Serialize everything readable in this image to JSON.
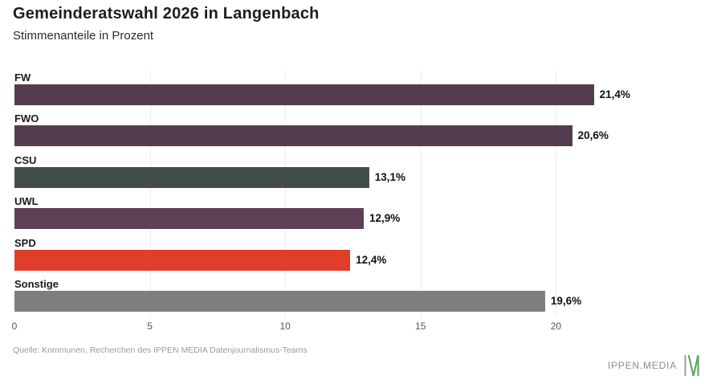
{
  "header": {
    "title": "Gemeinderatswahl 2026 in Langenbach",
    "subtitle": "Stimmenanteile in Prozent"
  },
  "chart_data": {
    "type": "bar",
    "orientation": "horizontal",
    "title": "Gemeinderatswahl 2026 in Langenbach",
    "subtitle": "Stimmenanteile in Prozent",
    "xlabel": "",
    "ylabel": "",
    "categories": [
      "FW",
      "FWO",
      "CSU",
      "UWL",
      "SPD",
      "Sonstige"
    ],
    "values": [
      21.4,
      20.6,
      13.1,
      12.9,
      12.4,
      19.6
    ],
    "value_labels": [
      "21,4%",
      "20,6%",
      "13,1%",
      "12,9%",
      "12,4%",
      "19,6%"
    ],
    "bar_colors": [
      "#543c4f",
      "#543c4f",
      "#434d49",
      "#5e4156",
      "#e03e2a",
      "#7f7e7f"
    ],
    "xlim": [
      0,
      25
    ],
    "ticks": [
      0,
      5,
      10,
      15,
      20
    ],
    "grid": "vertical-light",
    "legend": "none",
    "grid_color": "#ececec"
  },
  "footer": {
    "source": "Quelle: Kommunen, Recherchen des IPPEN MEDIA Datenjournalismus-Teams",
    "brand": "IPPEN.MEDIA"
  },
  "colors": {
    "background": "#ffffff",
    "title_text": "#1d1d1b",
    "tick_text": "#555555",
    "source_text": "#9b9b9b",
    "brand_gray": "#a0a0a0",
    "brand_green": "#5ea55e"
  }
}
